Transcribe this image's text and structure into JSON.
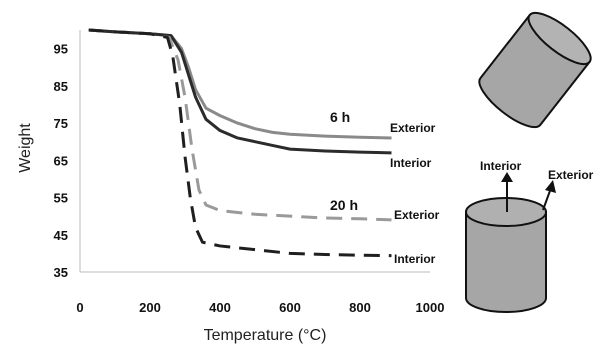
{
  "chart_data": {
    "type": "line",
    "xlabel": "Temperature (°C)",
    "ylabel": "Weight",
    "xlim": [
      0,
      1000
    ],
    "ylim": [
      35,
      100
    ],
    "x_ticks": [
      0,
      200,
      400,
      600,
      800,
      1000
    ],
    "y_ticks": [
      35,
      45,
      55,
      65,
      75,
      85,
      95
    ],
    "grid": false,
    "series": [
      {
        "name": "Exterior",
        "group": "6 h",
        "color": "#8a8a8a",
        "dash": "solid",
        "points": [
          [
            25,
            100
          ],
          [
            100,
            99.5
          ],
          [
            200,
            99
          ],
          [
            260,
            98.5
          ],
          [
            290,
            95
          ],
          [
            310,
            90
          ],
          [
            330,
            84
          ],
          [
            360,
            79
          ],
          [
            400,
            77
          ],
          [
            450,
            75
          ],
          [
            500,
            73.5
          ],
          [
            550,
            72.5
          ],
          [
            600,
            72
          ],
          [
            700,
            71.5
          ],
          [
            800,
            71.2
          ],
          [
            890,
            71
          ]
        ]
      },
      {
        "name": "Interior",
        "group": "6 h",
        "color": "#2b2b2b",
        "dash": "solid",
        "points": [
          [
            25,
            100
          ],
          [
            100,
            99.5
          ],
          [
            200,
            99
          ],
          [
            260,
            98.5
          ],
          [
            290,
            94
          ],
          [
            310,
            88
          ],
          [
            330,
            82
          ],
          [
            360,
            76
          ],
          [
            400,
            73
          ],
          [
            450,
            71
          ],
          [
            500,
            70
          ],
          [
            550,
            69
          ],
          [
            600,
            68
          ],
          [
            700,
            67.5
          ],
          [
            800,
            67.2
          ],
          [
            890,
            67
          ]
        ]
      },
      {
        "name": "Exterior",
        "group": "20 h",
        "color": "#9a9a9a",
        "dash": "dashed",
        "points": [
          [
            25,
            100
          ],
          [
            100,
            99.5
          ],
          [
            200,
            99
          ],
          [
            255,
            98
          ],
          [
            280,
            92
          ],
          [
            300,
            82
          ],
          [
            320,
            68
          ],
          [
            340,
            57
          ],
          [
            360,
            53
          ],
          [
            400,
            51.5
          ],
          [
            500,
            50.5
          ],
          [
            600,
            50
          ],
          [
            700,
            49.5
          ],
          [
            800,
            49.3
          ],
          [
            890,
            49
          ]
        ]
      },
      {
        "name": "Interior",
        "group": "20 h",
        "color": "#1f1f1f",
        "dash": "dashed",
        "points": [
          [
            25,
            100
          ],
          [
            100,
            99.5
          ],
          [
            200,
            99
          ],
          [
            250,
            98
          ],
          [
            265,
            93
          ],
          [
            285,
            80
          ],
          [
            300,
            66
          ],
          [
            315,
            55
          ],
          [
            330,
            47
          ],
          [
            350,
            43
          ],
          [
            400,
            42
          ],
          [
            500,
            41
          ],
          [
            600,
            40
          ],
          [
            700,
            39.7
          ],
          [
            800,
            39.5
          ],
          [
            890,
            39.4
          ]
        ]
      }
    ],
    "annotations": {
      "group_6h": "6 h",
      "group_20h": "20 h"
    }
  },
  "diagram": {
    "interior_label": "Interior",
    "exterior_label": "Exterior",
    "cylinder_color": "#a6a6a6",
    "outline_color": "#111111"
  }
}
